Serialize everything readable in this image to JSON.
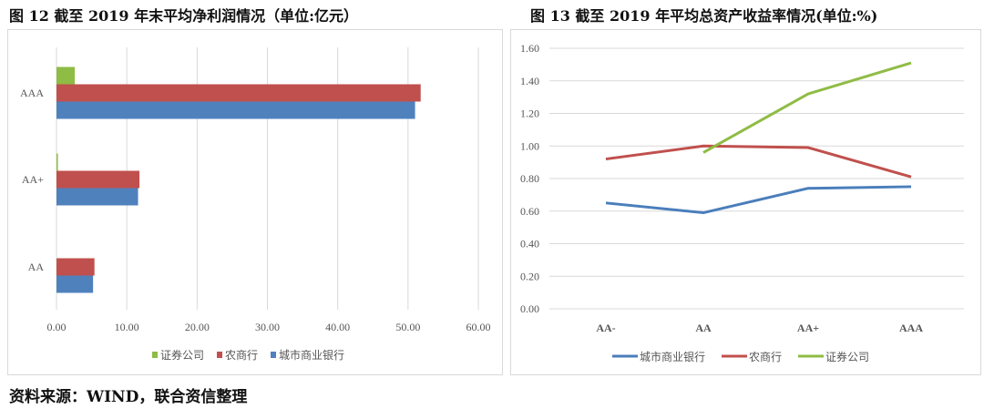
{
  "titles": {
    "left": "图 12   截至 2019 年末平均净利润情况（单位:亿元）",
    "right": "图 13   截至 2019 年平均总资产收益率情况(单位:%)"
  },
  "source": "资料来源：WIND，联合资信整理",
  "chart_data": [
    {
      "type": "bar",
      "orientation": "horizontal",
      "title": "截至 2019 年末平均净利润情况（单位:亿元）",
      "categories": [
        "AAA",
        "AA+",
        "AA"
      ],
      "xlim": [
        0,
        60
      ],
      "xticks": [
        "0.00",
        "10.00",
        "20.00",
        "30.00",
        "40.00",
        "50.00",
        "60.00"
      ],
      "grid": true,
      "legend_position": "bottom",
      "series": [
        {
          "name": "证券公司",
          "color": "#8fbc45",
          "values": [
            2.6,
            0.2,
            0
          ]
        },
        {
          "name": "农商行",
          "color": "#c0504d",
          "values": [
            51.8,
            11.8,
            5.4
          ]
        },
        {
          "name": "城市商业银行",
          "color": "#4f81bd",
          "values": [
            51.0,
            11.6,
            5.2
          ]
        }
      ]
    },
    {
      "type": "line",
      "title": "截至 2019 年平均总资产收益率情况(单位:%)",
      "categories": [
        "AA-",
        "AA",
        "AA+",
        "AAA"
      ],
      "ylim": [
        0,
        1.6
      ],
      "yticks": [
        "0.00",
        "0.20",
        "0.40",
        "0.60",
        "0.80",
        "1.00",
        "1.20",
        "1.40",
        "1.60"
      ],
      "grid": true,
      "legend_position": "bottom",
      "series": [
        {
          "name": "城市商业银行",
          "color": "#4a7ebb",
          "values": [
            0.65,
            0.59,
            0.74,
            0.75
          ]
        },
        {
          "name": "农商行",
          "color": "#c0504d",
          "values": [
            0.92,
            1.0,
            0.99,
            0.81
          ]
        },
        {
          "name": "证券公司",
          "color": "#8fbc45",
          "values": [
            null,
            0.96,
            1.32,
            1.51
          ]
        }
      ]
    }
  ]
}
